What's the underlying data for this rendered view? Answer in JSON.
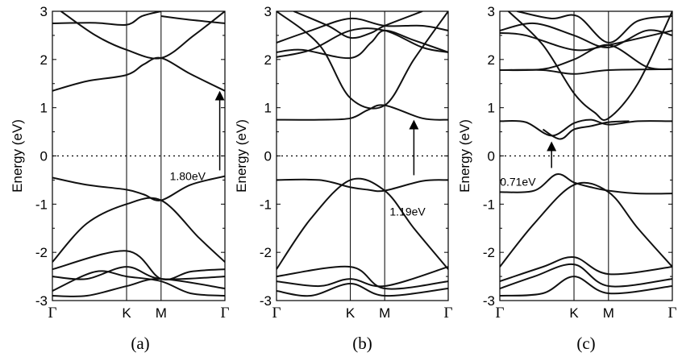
{
  "chart_data": [
    {
      "type": "line",
      "caption": "(a)",
      "ylabel": "Energy (eV)",
      "ylim": [
        -3,
        3
      ],
      "yticks": [
        "-3",
        "-2",
        "-1",
        "0",
        "1",
        "2",
        "3"
      ],
      "kpoints": [
        "Γ",
        "K",
        "M",
        "Γ"
      ],
      "kpos": [
        0,
        0.43,
        0.63,
        1.0
      ],
      "fermi_level": 0,
      "annotation": {
        "text": "1.80eV",
        "from": [
          0.97,
          -0.3
        ],
        "to": [
          0.97,
          1.3
        ]
      },
      "series": [
        {
          "values": [
            [
              0,
              2.75
            ],
            [
              0.25,
              2.76
            ],
            [
              0.43,
              2.72
            ],
            [
              0.52,
              2.9
            ],
            [
              0.63,
              3.0
            ]
          ]
        },
        {
          "values": [
            [
              0.63,
              2.9
            ],
            [
              0.78,
              2.83
            ],
            [
              1.0,
              2.75
            ]
          ]
        },
        {
          "values": [
            [
              0.05,
              3.0
            ],
            [
              0.25,
              2.5
            ],
            [
              0.43,
              2.2
            ],
            [
              0.63,
              2.03
            ],
            [
              0.82,
              2.5
            ],
            [
              1.0,
              3.0
            ]
          ]
        },
        {
          "values": [
            [
              0,
              1.35
            ],
            [
              0.2,
              1.55
            ],
            [
              0.43,
              1.68
            ],
            [
              0.53,
              1.9
            ],
            [
              0.63,
              2.03
            ],
            [
              0.8,
              1.7
            ],
            [
              1.0,
              1.35
            ]
          ]
        },
        {
          "values": [
            [
              0,
              -0.45
            ],
            [
              0.2,
              -0.6
            ],
            [
              0.43,
              -0.7
            ],
            [
              0.53,
              -0.8
            ],
            [
              0.63,
              -0.92
            ],
            [
              0.8,
              -0.6
            ],
            [
              1.0,
              -0.42
            ]
          ]
        },
        {
          "values": [
            [
              0,
              -2.2
            ],
            [
              0.2,
              -1.4
            ],
            [
              0.43,
              -1.0
            ],
            [
              0.63,
              -0.92
            ],
            [
              0.85,
              -1.7
            ],
            [
              1.0,
              -2.2
            ]
          ]
        },
        {
          "values": [
            [
              0,
              -2.35
            ],
            [
              0.43,
              -1.97
            ],
            [
              0.63,
              -2.55
            ],
            [
              0.8,
              -2.4
            ],
            [
              1.0,
              -2.35
            ]
          ]
        },
        {
          "values": [
            [
              0,
              -2.5
            ],
            [
              0.2,
              -2.55
            ],
            [
              0.43,
              -2.3
            ],
            [
              0.63,
              -2.55
            ],
            [
              1.0,
              -2.5
            ]
          ]
        },
        {
          "values": [
            [
              0,
              -2.8
            ],
            [
              0.25,
              -2.4
            ],
            [
              0.43,
              -2.5
            ],
            [
              0.63,
              -2.6
            ],
            [
              0.8,
              -2.85
            ],
            [
              1.0,
              -2.9
            ]
          ]
        },
        {
          "values": [
            [
              0,
              -2.9
            ],
            [
              0.2,
              -2.9
            ],
            [
              0.43,
              -2.7
            ],
            [
              0.63,
              -2.55
            ],
            [
              1.0,
              -2.75
            ]
          ]
        }
      ]
    },
    {
      "type": "line",
      "caption": "(b)",
      "ylabel": "Energy (eV)",
      "ylim": [
        -3,
        3
      ],
      "yticks": [
        "-3",
        "-2",
        "-1",
        "0",
        "1",
        "2",
        "3"
      ],
      "kpoints": [
        "Γ",
        "K",
        "M",
        "Γ"
      ],
      "kpos": [
        0,
        0.43,
        0.63,
        1.0
      ],
      "fermi_level": 0,
      "annotation": {
        "text": "1.19eV",
        "from": [
          0.8,
          -0.4
        ],
        "to": [
          0.8,
          0.7
        ]
      },
      "series": [
        {
          "values": [
            [
              0,
              2.15
            ],
            [
              0.15,
              2.2
            ],
            [
              0.43,
              2.03
            ],
            [
              0.55,
              2.35
            ],
            [
              0.63,
              2.6
            ],
            [
              0.8,
              2.4
            ],
            [
              1.0,
              2.15
            ]
          ]
        },
        {
          "values": [
            [
              0,
              2.05
            ],
            [
              0.2,
              2.2
            ],
            [
              0.43,
              2.6
            ],
            [
              0.63,
              2.6
            ],
            [
              0.85,
              2.25
            ],
            [
              1.0,
              2.15
            ]
          ]
        },
        {
          "values": [
            [
              0,
              2.35
            ],
            [
              0.2,
              2.6
            ],
            [
              0.43,
              2.85
            ],
            [
              0.63,
              2.7
            ],
            [
              0.85,
              2.7
            ],
            [
              1.0,
              2.6
            ]
          ]
        },
        {
          "values": [
            [
              0,
              3.0
            ],
            [
              0.25,
              2.3
            ],
            [
              0.43,
              1.2
            ],
            [
              0.63,
              1.05
            ],
            [
              0.8,
              2.0
            ],
            [
              1.0,
              3.0
            ]
          ]
        },
        {
          "values": [
            [
              0.1,
              3.0
            ],
            [
              0.3,
              2.7
            ],
            [
              0.43,
              2.45
            ],
            [
              0.55,
              2.55
            ],
            [
              0.63,
              2.7
            ],
            [
              0.85,
              3.0
            ]
          ]
        },
        {
          "values": [
            [
              0,
              0.75
            ],
            [
              0.25,
              0.75
            ],
            [
              0.43,
              0.78
            ],
            [
              0.53,
              0.95
            ],
            [
              0.63,
              1.05
            ],
            [
              0.85,
              0.78
            ],
            [
              1.0,
              0.75
            ]
          ]
        },
        {
          "values": [
            [
              0,
              -0.5
            ],
            [
              0.25,
              -0.5
            ],
            [
              0.43,
              -0.65
            ],
            [
              0.53,
              -0.7
            ],
            [
              0.63,
              -0.72
            ],
            [
              0.85,
              -0.52
            ],
            [
              1.0,
              -0.5
            ]
          ]
        },
        {
          "values": [
            [
              0,
              -2.35
            ],
            [
              0.2,
              -1.3
            ],
            [
              0.43,
              -0.5
            ],
            [
              0.63,
              -0.72
            ],
            [
              0.8,
              -1.5
            ],
            [
              1.0,
              -2.35
            ]
          ]
        },
        {
          "values": [
            [
              0,
              -2.5
            ],
            [
              0.43,
              -2.3
            ],
            [
              0.63,
              -2.75
            ],
            [
              1.0,
              -2.6
            ]
          ]
        },
        {
          "values": [
            [
              0,
              -2.6
            ],
            [
              0.25,
              -2.7
            ],
            [
              0.43,
              -2.55
            ],
            [
              0.63,
              -2.7
            ],
            [
              1.0,
              -2.3
            ]
          ]
        },
        {
          "values": [
            [
              0,
              -2.8
            ],
            [
              0.2,
              -2.9
            ],
            [
              0.43,
              -2.65
            ],
            [
              0.63,
              -2.9
            ],
            [
              1.0,
              -2.75
            ]
          ]
        }
      ]
    },
    {
      "type": "line",
      "caption": "(c)",
      "ylabel": "Energy (eV)",
      "ylim": [
        -3,
        3
      ],
      "yticks": [
        "-3",
        "-2",
        "-1",
        "0",
        "1",
        "2",
        "3"
      ],
      "kpoints": [
        "Γ",
        "K",
        "M",
        "Γ"
      ],
      "kpos": [
        0,
        0.43,
        0.63,
        1.0
      ],
      "fermi_level": 0,
      "annotation": {
        "text": "0.71eV",
        "from": [
          0.3,
          -0.25
        ],
        "to": [
          0.3,
          0.25
        ]
      },
      "series": [
        {
          "values": [
            [
              0,
              1.78
            ],
            [
              0.25,
              1.78
            ],
            [
              0.43,
              1.7
            ],
            [
              0.63,
              1.78
            ],
            [
              1.0,
              1.8
            ]
          ]
        },
        {
          "values": [
            [
              0,
              1.78
            ],
            [
              0.25,
              1.8
            ],
            [
              0.43,
              2.0
            ],
            [
              0.63,
              2.3
            ],
            [
              0.85,
              1.85
            ],
            [
              1.0,
              1.8
            ]
          ]
        },
        {
          "values": [
            [
              0,
              2.55
            ],
            [
              0.15,
              2.5
            ],
            [
              0.43,
              2.2
            ],
            [
              0.63,
              2.3
            ],
            [
              1.0,
              2.6
            ]
          ]
        },
        {
          "values": [
            [
              0,
              2.6
            ],
            [
              0.2,
              2.75
            ],
            [
              0.43,
              2.5
            ],
            [
              0.63,
              2.25
            ],
            [
              0.85,
              2.6
            ],
            [
              1.0,
              2.5
            ]
          ]
        },
        {
          "values": [
            [
              0.05,
              3.0
            ],
            [
              0.25,
              2.3
            ],
            [
              0.43,
              1.3
            ],
            [
              0.55,
              0.9
            ],
            [
              0.63,
              0.78
            ],
            [
              0.8,
              1.5
            ],
            [
              1.0,
              3.0
            ]
          ]
        },
        {
          "values": [
            [
              0.1,
              3.0
            ],
            [
              0.3,
              2.85
            ],
            [
              0.45,
              2.9
            ],
            [
              0.63,
              2.35
            ],
            [
              0.8,
              2.8
            ],
            [
              1.0,
              2.9
            ]
          ]
        },
        {
          "values": [
            [
              0,
              0.72
            ],
            [
              0.15,
              0.7
            ],
            [
              0.3,
              0.42
            ],
            [
              0.43,
              0.68
            ],
            [
              0.53,
              0.75
            ],
            [
              0.63,
              0.65
            ],
            [
              0.8,
              0.72
            ],
            [
              1.0,
              0.72
            ]
          ]
        },
        {
          "values": [
            [
              0.25,
              0.55
            ],
            [
              0.35,
              0.35
            ],
            [
              0.43,
              0.55
            ],
            [
              0.53,
              0.62
            ],
            [
              0.63,
              0.7
            ],
            [
              0.75,
              0.72
            ]
          ]
        },
        {
          "values": [
            [
              0,
              -0.75
            ],
            [
              0.2,
              -0.72
            ],
            [
              0.33,
              -0.38
            ],
            [
              0.43,
              -0.55
            ],
            [
              0.53,
              -0.65
            ],
            [
              0.63,
              -0.72
            ],
            [
              0.8,
              -0.78
            ],
            [
              1.0,
              -0.78
            ]
          ]
        },
        {
          "values": [
            [
              0,
              -2.3
            ],
            [
              0.2,
              -1.4
            ],
            [
              0.43,
              -0.6
            ],
            [
              0.63,
              -0.75
            ],
            [
              0.8,
              -1.5
            ],
            [
              1.0,
              -2.3
            ]
          ]
        },
        {
          "values": [
            [
              0,
              -2.6
            ],
            [
              0.25,
              -2.3
            ],
            [
              0.43,
              -2.1
            ],
            [
              0.63,
              -2.45
            ],
            [
              1.0,
              -2.3
            ]
          ]
        },
        {
          "values": [
            [
              0,
              -2.75
            ],
            [
              0.2,
              -2.5
            ],
            [
              0.43,
              -2.25
            ],
            [
              0.63,
              -2.7
            ],
            [
              1.0,
              -2.55
            ]
          ]
        },
        {
          "values": [
            [
              0,
              -2.9
            ],
            [
              0.25,
              -2.85
            ],
            [
              0.43,
              -2.5
            ],
            [
              0.63,
              -2.85
            ],
            [
              1.0,
              -2.7
            ]
          ]
        }
      ]
    }
  ]
}
